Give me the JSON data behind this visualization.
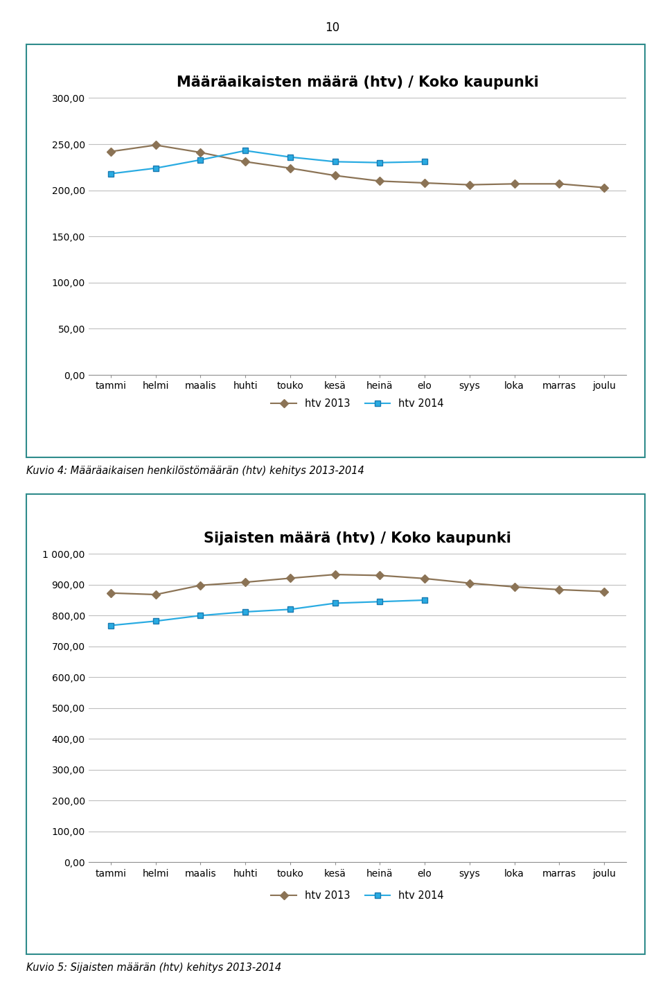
{
  "chart1": {
    "title": "Määräaikaisten määrä (htv) / Koko kaupunki",
    "categories": [
      "tammi",
      "helmi",
      "maalis",
      "huhti",
      "touko",
      "kesä",
      "heinä",
      "elo",
      "syys",
      "loka",
      "marras",
      "joulu"
    ],
    "series2013": [
      242,
      249,
      241,
      231,
      224,
      216,
      210,
      208,
      206,
      207,
      207,
      203
    ],
    "series2014": [
      218,
      224,
      233,
      243,
      236,
      231,
      230,
      231,
      null,
      null,
      null,
      null
    ],
    "ylim": [
      0,
      300
    ],
    "yticks": [
      0,
      50,
      100,
      150,
      200,
      250,
      300
    ],
    "legend2013": "htv 2013",
    "legend2014": "htv 2014",
    "caption": "Kuvio 4: Määräaikaisen henkilöstömäärän (htv) kehitys 2013-2014"
  },
  "chart2": {
    "title": "Sijaisten määrä (htv) / Koko kaupunki",
    "categories": [
      "tammi",
      "helmi",
      "maalis",
      "huhti",
      "touko",
      "kesä",
      "heinä",
      "elo",
      "syys",
      "loka",
      "marras",
      "joulu"
    ],
    "series2013": [
      873,
      868,
      898,
      908,
      921,
      933,
      930,
      920,
      905,
      893,
      884,
      878
    ],
    "series2014": [
      768,
      782,
      800,
      812,
      820,
      840,
      845,
      850,
      null,
      null,
      null,
      null
    ],
    "ylim": [
      0,
      1000
    ],
    "yticks": [
      0,
      100,
      200,
      300,
      400,
      500,
      600,
      700,
      800,
      900,
      1000
    ],
    "legend2013": "htv 2013",
    "legend2014": "htv 2014",
    "caption": "Kuvio 5: Sijaisten määrän (htv) kehitys 2013-2014"
  },
  "color2013": "#8B7355",
  "color2014": "#29ABE2",
  "marker2013": "D",
  "marker2014": "s",
  "page_number": "10",
  "border_color": "#2E8B8B",
  "grid_color": "#BEBEBE",
  "bg_color": "#FFFFFF",
  "title_fontsize": 15,
  "tick_fontsize": 10,
  "legend_fontsize": 10.5,
  "caption_fontsize": 10.5
}
